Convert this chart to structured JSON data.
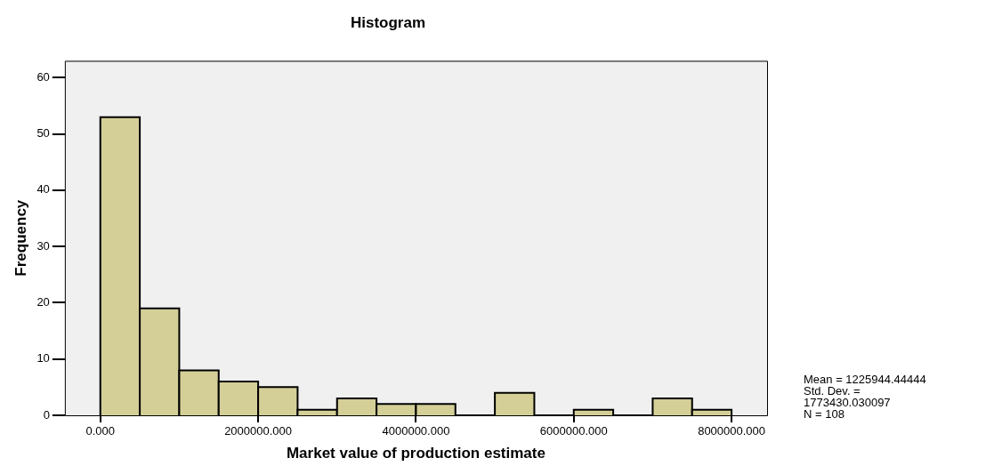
{
  "chart_data": {
    "type": "histogram",
    "title": "Histogram",
    "xlabel": "Market value of production estimate",
    "ylabel": "Frequency",
    "bins": [
      0,
      500000,
      1000000,
      1500000,
      2000000,
      2500000,
      3000000,
      3500000,
      4000000,
      4500000,
      5000000,
      5500000,
      6000000,
      6500000,
      7000000,
      7500000,
      8000000
    ],
    "values": [
      53,
      19,
      8,
      6,
      5,
      1,
      3,
      2,
      2,
      0,
      4,
      0,
      1,
      0,
      3,
      1
    ],
    "color": "#d4cf97",
    "xlim": [
      -450000,
      8450000
    ],
    "xticks": [
      {
        "value": 0,
        "label": "0.000"
      },
      {
        "value": 2000000,
        "label": "2000000.000"
      },
      {
        "value": 4000000,
        "label": "4000000.000"
      },
      {
        "value": 6000000,
        "label": "6000000.000"
      },
      {
        "value": 8000000,
        "label": "8000000.000"
      }
    ],
    "ylim": [
      0,
      63
    ],
    "yticks": [
      0,
      10,
      20,
      30,
      40,
      50,
      60
    ],
    "grid": false,
    "legend": false,
    "annotations": [
      "Mean = 1225944.44444",
      "Std. Dev. =",
      "1773430.030097",
      "N = 108"
    ]
  }
}
